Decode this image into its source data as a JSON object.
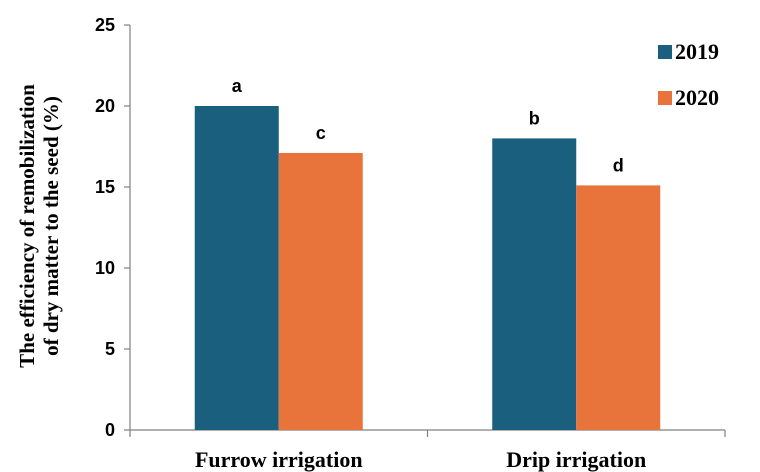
{
  "chart_data": {
    "type": "bar",
    "title": "",
    "xlabel": "",
    "ylabel": [
      "The efficiency of remobilization",
      "of dry matter to the seed (%)"
    ],
    "ylim": [
      0,
      25
    ],
    "yticks": [
      "0",
      "5",
      "10",
      "15",
      "20",
      "25"
    ],
    "categories": [
      "Furrow irrigation",
      "Drip irrigation"
    ],
    "series": [
      {
        "name": "2019",
        "color": "#1b5f7e",
        "values": [
          20,
          18
        ],
        "labels": [
          "a",
          "b"
        ]
      },
      {
        "name": "2020",
        "color": "#e8743b",
        "values": [
          17.1,
          15.1
        ],
        "labels": [
          "c",
          "d"
        ]
      }
    ],
    "grid": false,
    "legend": "top-right"
  }
}
